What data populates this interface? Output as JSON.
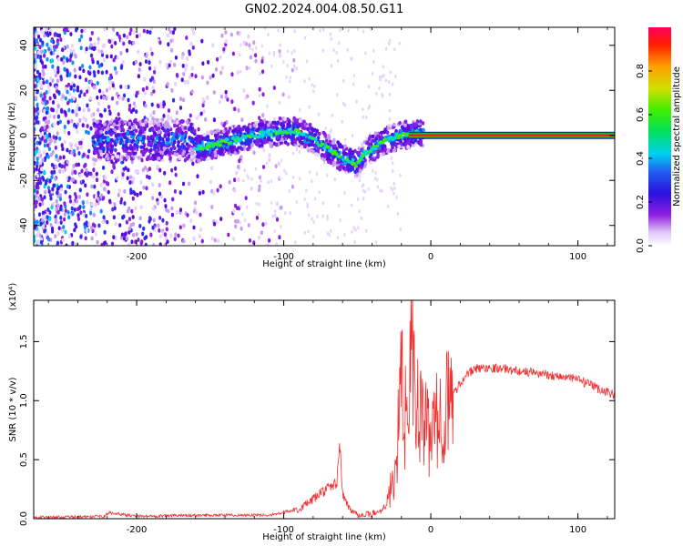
{
  "title": "GN02.2024.004.08.50.G11",
  "chart_data": [
    {
      "type": "heatmap",
      "xlabel": "Height of straight line (km)",
      "ylabel": "Frequency (Hz)",
      "xlim": [
        -270,
        125
      ],
      "ylim": [
        -49,
        48
      ],
      "xticks": [
        -200,
        -100,
        0,
        100
      ],
      "yticks": [
        -40,
        -20,
        0,
        20,
        40
      ],
      "colorbar": {
        "label": "Normalized spectral amplitude",
        "range": [
          0,
          1
        ],
        "ticks": [
          "0.0",
          "0.2",
          "0.4",
          "0.6",
          "0.8"
        ]
      },
      "ridge": {
        "x": [
          -160,
          -140,
          -120,
          -110,
          -100,
          -90,
          -80,
          -70,
          -60,
          -50,
          -45,
          -40,
          -35,
          -30,
          -20,
          -10,
          0,
          10,
          20,
          60,
          100,
          125
        ],
        "y": [
          -6,
          -3,
          0,
          1,
          2,
          1.5,
          -2,
          -6,
          -10,
          -13,
          -8,
          -6,
          -4,
          -2,
          0,
          1,
          1,
          0.5,
          0,
          0,
          0,
          0
        ]
      },
      "line": {
        "from_x": -15,
        "to_x": 125,
        "y": 0,
        "color": "#ff1a1a"
      }
    },
    {
      "type": "line",
      "xlabel": "Height of straight line (km)",
      "ylabel": "SNR (10 * v/v)",
      "multiplier": "(x10⁴)",
      "xlim": [
        -270,
        125
      ],
      "ylim": [
        0,
        1.85
      ],
      "xticks": [
        -200,
        -100,
        0,
        100
      ],
      "yticks": [
        0.0,
        0.5,
        1.0,
        1.5
      ],
      "ytick_labels": [
        "0.0",
        "0.5",
        "1.0",
        "1.5"
      ],
      "series": [
        {
          "color": "#f03030",
          "x": [
            -270,
            -240,
            -222,
            -219,
            -200,
            -150,
            -110,
            -100,
            -90,
            -80,
            -75,
            -70,
            -64,
            -62,
            -60,
            -55,
            -50,
            -45,
            -40,
            -35,
            -30,
            -25,
            -22,
            -20,
            -18,
            -15,
            -13,
            -11,
            -8,
            -5,
            0,
            5,
            10,
            15,
            20,
            25,
            30,
            40,
            50,
            60,
            80,
            100,
            110,
            125
          ],
          "values": [
            0.01,
            0.015,
            0.02,
            0.05,
            0.02,
            0.03,
            0.03,
            0.05,
            0.08,
            0.16,
            0.22,
            0.25,
            0.3,
            0.65,
            0.2,
            0.08,
            0.04,
            0.03,
            0.04,
            0.06,
            0.12,
            0.35,
            0.75,
            1.2,
            0.8,
            1.1,
            1.5,
            1.0,
            0.9,
            0.8,
            0.7,
            0.85,
            0.95,
            1.05,
            1.15,
            1.22,
            1.27,
            1.28,
            1.27,
            1.25,
            1.22,
            1.18,
            1.12,
            1.05
          ]
        }
      ]
    }
  ]
}
